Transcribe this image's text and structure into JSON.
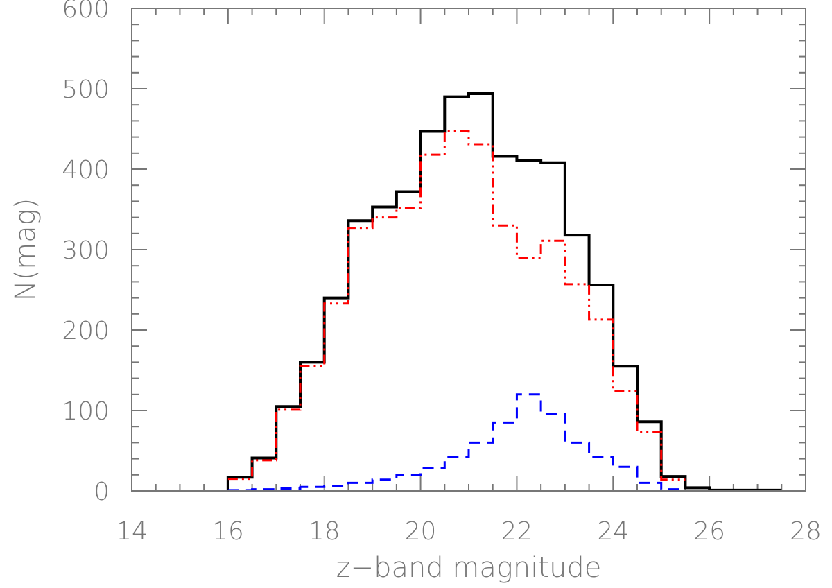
{
  "chart_data": {
    "type": "line",
    "step": true,
    "xlabel": "z−band magnitude",
    "ylabel": "N(mag)",
    "xlim": [
      14,
      28
    ],
    "ylim": [
      0,
      600
    ],
    "x_ticks": [
      "14",
      "16",
      "18",
      "20",
      "22",
      "24",
      "26",
      "28"
    ],
    "y_ticks": [
      "0",
      "100",
      "200",
      "300",
      "400",
      "500",
      "600"
    ],
    "grid": false,
    "legend": "none",
    "bin_edges": [
      15.5,
      16.0,
      16.5,
      17.0,
      17.5,
      18.0,
      18.5,
      19.0,
      19.5,
      20.0,
      20.5,
      21.0,
      21.5,
      22.0,
      22.5,
      23.0,
      23.5,
      24.0,
      24.5,
      25.0,
      25.5,
      26.0,
      26.5,
      27.0,
      27.5
    ],
    "series": [
      {
        "color": "#000000",
        "style": "solid",
        "values": [
          0,
          17,
          41,
          105,
          160,
          240,
          336,
          353,
          372,
          447,
          490,
          494,
          416,
          411,
          408,
          318,
          256,
          155,
          86,
          18,
          4,
          1,
          1,
          1
        ]
      },
      {
        "color": "#ff0000",
        "style": "dash-dot-dot",
        "values": [
          null,
          15,
          38,
          101,
          155,
          233,
          327,
          340,
          352,
          418,
          447,
          431,
          330,
          290,
          311,
          257,
          213,
          124,
          73,
          14,
          null,
          null,
          null,
          null
        ]
      },
      {
        "color": "#0000ff",
        "style": "dashed",
        "values": [
          null,
          1,
          2,
          3,
          5,
          6,
          10,
          14,
          20,
          28,
          42,
          60,
          85,
          120,
          96,
          60,
          42,
          30,
          10,
          2,
          null,
          null,
          null,
          null
        ]
      }
    ]
  }
}
